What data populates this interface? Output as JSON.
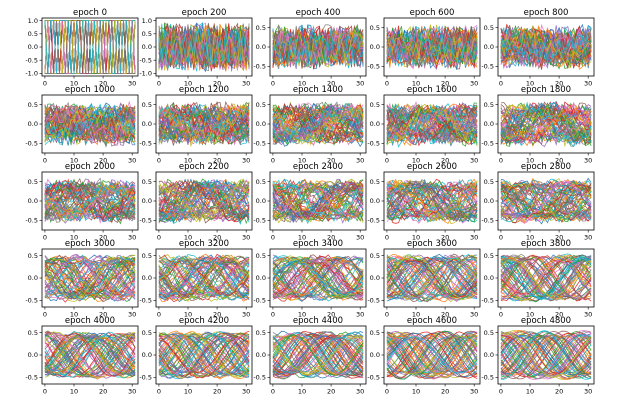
{
  "chart_data": {
    "type": "line",
    "grid": false,
    "panel_layout": {
      "rows": 5,
      "cols": 5
    },
    "xlim": [
      -1,
      32
    ],
    "x_ticks": [
      0,
      10,
      20,
      30
    ],
    "series_per_panel": 60,
    "samples_per_series": 32,
    "palette": [
      "#1f77b4",
      "#ff7f0e",
      "#2ca02c",
      "#d62728",
      "#9467bd",
      "#8c564b",
      "#e377c2",
      "#7f7f7f",
      "#bcbd22",
      "#17becf"
    ],
    "panels": [
      {
        "title": "epoch 0",
        "ylim": [
          -1.1,
          1.1
        ],
        "y_ticks": [
          -1.0,
          -0.5,
          0.0,
          0.5,
          1.0
        ],
        "y_tick_labels": [
          "-1.0",
          "-0.5",
          "0.0",
          "0.5",
          "1.0"
        ],
        "amplitude": 1.0,
        "smoothness": 0.0
      },
      {
        "title": "epoch 200",
        "ylim": [
          -1.1,
          1.1
        ],
        "y_ticks": [
          -1.0,
          -0.5,
          0.0,
          0.5,
          1.0
        ],
        "y_tick_labels": [
          "-1.0",
          "-0.5",
          "0.0",
          "0.5",
          "1.0"
        ],
        "amplitude": 0.95,
        "smoothness": 0.15
      },
      {
        "title": "epoch 400",
        "ylim": [
          -0.75,
          0.75
        ],
        "y_ticks": [
          -0.5,
          0.0,
          0.5
        ],
        "y_tick_labels": [
          "-0.5",
          "0.0",
          "0.5"
        ],
        "amplitude": 0.6,
        "smoothness": 0.3
      },
      {
        "title": "epoch 600",
        "ylim": [
          -0.75,
          0.75
        ],
        "y_ticks": [
          -0.5,
          0.0,
          0.5
        ],
        "y_tick_labels": [
          "-0.5",
          "0.0",
          "0.5"
        ],
        "amplitude": 0.6,
        "smoothness": 0.4
      },
      {
        "title": "epoch 800",
        "ylim": [
          -0.75,
          0.75
        ],
        "y_ticks": [
          -0.5,
          0.0,
          0.5
        ],
        "y_tick_labels": [
          "-0.5",
          "0.0",
          "0.5"
        ],
        "amplitude": 0.6,
        "smoothness": 0.5
      },
      {
        "title": "epoch 1000",
        "ylim": [
          -0.75,
          0.75
        ],
        "y_ticks": [
          -0.5,
          0.0,
          0.5
        ],
        "y_tick_labels": [
          "-0.5",
          "0.0",
          "0.5"
        ],
        "amplitude": 0.6,
        "smoothness": 0.6
      },
      {
        "title": "epoch 1200",
        "ylim": [
          -0.75,
          0.75
        ],
        "y_ticks": [
          -0.5,
          0.0,
          0.5
        ],
        "y_tick_labels": [
          "-0.5",
          "0.0",
          "0.5"
        ],
        "amplitude": 0.6,
        "smoothness": 0.65
      },
      {
        "title": "epoch 1400",
        "ylim": [
          -0.75,
          0.75
        ],
        "y_ticks": [
          -0.5,
          0.0,
          0.5
        ],
        "y_tick_labels": [
          "-0.5",
          "0.0",
          "0.5"
        ],
        "amplitude": 0.6,
        "smoothness": 0.7
      },
      {
        "title": "epoch 1600",
        "ylim": [
          -0.75,
          0.75
        ],
        "y_ticks": [
          -0.5,
          0.0,
          0.5
        ],
        "y_tick_labels": [
          "-0.5",
          "0.0",
          "0.5"
        ],
        "amplitude": 0.6,
        "smoothness": 0.7
      },
      {
        "title": "epoch 1800",
        "ylim": [
          -0.75,
          0.75
        ],
        "y_ticks": [
          -0.5,
          0.0,
          0.5
        ],
        "y_tick_labels": [
          "-0.5",
          "0.0",
          "0.5"
        ],
        "amplitude": 0.6,
        "smoothness": 0.72
      },
      {
        "title": "epoch 2000",
        "ylim": [
          -0.75,
          0.75
        ],
        "y_ticks": [
          -0.5,
          0.0,
          0.5
        ],
        "y_tick_labels": [
          "-0.5",
          "0.0",
          "0.5"
        ],
        "amplitude": 0.6,
        "smoothness": 0.75
      },
      {
        "title": "epoch 2200",
        "ylim": [
          -0.75,
          0.75
        ],
        "y_ticks": [
          -0.5,
          0.0,
          0.5
        ],
        "y_tick_labels": [
          "-0.5",
          "0.0",
          "0.5"
        ],
        "amplitude": 0.6,
        "smoothness": 0.78
      },
      {
        "title": "epoch 2400",
        "ylim": [
          -0.75,
          0.75
        ],
        "y_ticks": [
          -0.5,
          0.0,
          0.5
        ],
        "y_tick_labels": [
          "-0.5",
          "0.0",
          "0.5"
        ],
        "amplitude": 0.6,
        "smoothness": 0.8
      },
      {
        "title": "epoch 2600",
        "ylim": [
          -0.75,
          0.75
        ],
        "y_ticks": [
          -0.5,
          0.0,
          0.5
        ],
        "y_tick_labels": [
          "-0.5",
          "0.0",
          "0.5"
        ],
        "amplitude": 0.6,
        "smoothness": 0.82
      },
      {
        "title": "epoch 2800",
        "ylim": [
          -0.75,
          0.75
        ],
        "y_ticks": [
          -0.5,
          0.0,
          0.5
        ],
        "y_tick_labels": [
          "-0.5",
          "0.0",
          "0.5"
        ],
        "amplitude": 0.6,
        "smoothness": 0.84
      },
      {
        "title": "epoch 3000",
        "ylim": [
          -0.65,
          0.65
        ],
        "y_ticks": [
          -0.5,
          0.0,
          0.5
        ],
        "y_tick_labels": [
          "-0.5",
          "0.0",
          "0.5"
        ],
        "amplitude": 0.55,
        "smoothness": 0.9
      },
      {
        "title": "epoch 3200",
        "ylim": [
          -0.65,
          0.65
        ],
        "y_ticks": [
          -0.5,
          0.0,
          0.5
        ],
        "y_tick_labels": [
          "-0.5",
          "0.0",
          "0.5"
        ],
        "amplitude": 0.55,
        "smoothness": 0.9
      },
      {
        "title": "epoch 3400",
        "ylim": [
          -0.65,
          0.65
        ],
        "y_ticks": [
          -0.5,
          0.0,
          0.5
        ],
        "y_tick_labels": [
          "-0.5",
          "0.0",
          "0.5"
        ],
        "amplitude": 0.55,
        "smoothness": 0.92
      },
      {
        "title": "epoch 3600",
        "ylim": [
          -0.65,
          0.65
        ],
        "y_ticks": [
          -0.5,
          0.0,
          0.5
        ],
        "y_tick_labels": [
          "-0.5",
          "0.0",
          "0.5"
        ],
        "amplitude": 0.55,
        "smoothness": 0.93
      },
      {
        "title": "epoch 3800",
        "ylim": [
          -0.65,
          0.65
        ],
        "y_ticks": [
          -0.5,
          0.0,
          0.5
        ],
        "y_tick_labels": [
          "-0.5",
          "0.0",
          "0.5"
        ],
        "amplitude": 0.55,
        "smoothness": 0.94
      },
      {
        "title": "epoch 4000",
        "ylim": [
          -0.65,
          0.65
        ],
        "y_ticks": [
          -0.5,
          0.0,
          0.5
        ],
        "y_tick_labels": [
          "-0.5",
          "0.0",
          "0.5"
        ],
        "amplitude": 0.55,
        "smoothness": 0.95
      },
      {
        "title": "epoch 4200",
        "ylim": [
          -0.65,
          0.65
        ],
        "y_ticks": [
          -0.5,
          0.0,
          0.5
        ],
        "y_tick_labels": [
          "-0.5",
          "0.0",
          "0.5"
        ],
        "amplitude": 0.55,
        "smoothness": 0.96
      },
      {
        "title": "epoch 4400",
        "ylim": [
          -0.65,
          0.65
        ],
        "y_ticks": [
          -0.5,
          0.0,
          0.5
        ],
        "y_tick_labels": [
          "-0.5",
          "0.0",
          "0.5"
        ],
        "amplitude": 0.55,
        "smoothness": 0.97
      },
      {
        "title": "epoch 4600",
        "ylim": [
          -0.65,
          0.65
        ],
        "y_ticks": [
          -0.5,
          0.0,
          0.5
        ],
        "y_tick_labels": [
          "-0.5",
          "0.0",
          "0.5"
        ],
        "amplitude": 0.55,
        "smoothness": 0.98
      },
      {
        "title": "epoch 4800",
        "ylim": [
          -0.65,
          0.65
        ],
        "y_ticks": [
          -0.5,
          0.0,
          0.5
        ],
        "y_tick_labels": [
          "-0.5",
          "0.0",
          "0.5"
        ],
        "amplitude": 0.55,
        "smoothness": 1.0
      }
    ]
  }
}
